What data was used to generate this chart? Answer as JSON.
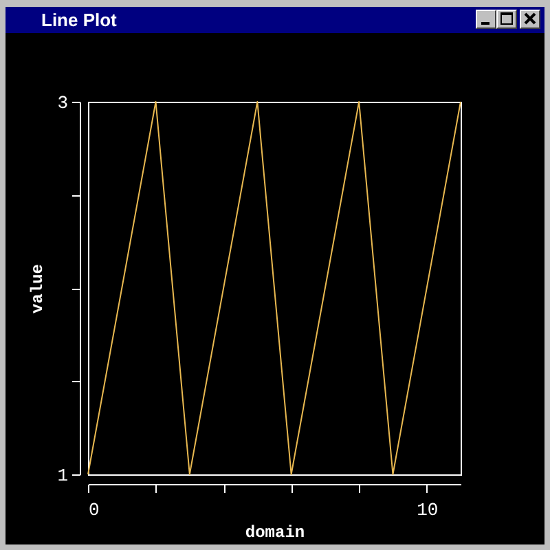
{
  "chart_data": {
    "type": "line",
    "title": "Line Plot",
    "xlabel": "domain",
    "ylabel": "value",
    "x": [
      0,
      2,
      3,
      5,
      6,
      8,
      9,
      11
    ],
    "series": [
      {
        "color": "#e8b850",
        "values": [
          1,
          3,
          1,
          3,
          1,
          3,
          1,
          3
        ]
      }
    ],
    "xlim": [
      0,
      11
    ],
    "xticks": [
      0,
      {
        "value": 2,
        "label": null
      },
      {
        "value": 4,
        "label": null
      },
      {
        "value": 6,
        "label": null
      },
      {
        "value": 8,
        "label": null
      },
      10
    ],
    "ylim": [
      1,
      3
    ],
    "yticks": [
      1,
      {
        "value": 1.5,
        "label": null
      },
      {
        "value": 2,
        "label": null
      },
      {
        "value": 2.5,
        "label": null
      },
      3
    ],
    "grid": false
  }
}
